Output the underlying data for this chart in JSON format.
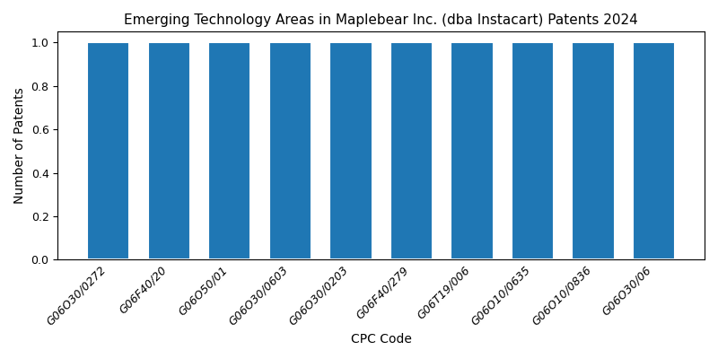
{
  "title": "Emerging Technology Areas in Maplebear Inc. (dba Instacart) Patents 2024",
  "xlabel": "CPC Code",
  "ylabel": "Number of Patents",
  "categories": [
    "G06O30/0272",
    "G06F40/20",
    "G06O50/01",
    "G06O30/0603",
    "G06O30/0203",
    "G06F40/279",
    "G06T19/006",
    "G06O10/0635",
    "G06O10/0836",
    "G06O30/06"
  ],
  "values": [
    1,
    1,
    1,
    1,
    1,
    1,
    1,
    1,
    1,
    1
  ],
  "bar_color": "#1f77b4",
  "bar_width": 0.7,
  "ylim": [
    0,
    1.05
  ],
  "yticks": [
    0.0,
    0.2,
    0.4,
    0.6,
    0.8,
    1.0
  ],
  "title_fontsize": 11,
  "label_fontsize": 10,
  "tick_fontsize": 9,
  "figsize": [
    8.0,
    4.0
  ],
  "dpi": 100
}
